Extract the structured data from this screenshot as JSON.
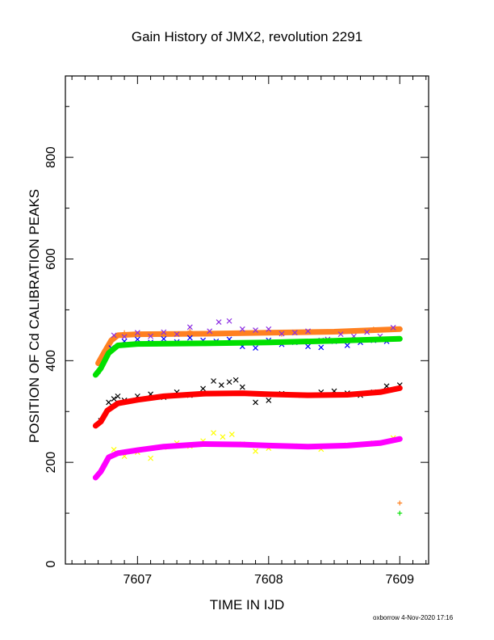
{
  "chart_data": {
    "type": "scatter",
    "title": "Gain History of JMX2, revolution 2291",
    "xlabel": "TIME IN IJD",
    "ylabel": "POSITION OF Cd CALIBRATION PEAKS",
    "xlim": [
      7606.45,
      7609.22
    ],
    "ylim": [
      0,
      960
    ],
    "xticks": [
      7607,
      7608,
      7609
    ],
    "yticks": [
      0,
      200,
      400,
      600,
      800
    ],
    "grid": false,
    "series": [
      {
        "color": "#ff8020",
        "marker": "+",
        "fit": [
          [
            7606.7,
            395
          ],
          [
            7606.75,
            418
          ],
          [
            7606.8,
            440
          ],
          [
            7606.85,
            450
          ],
          [
            7607.0,
            452
          ],
          [
            7607.5,
            453
          ],
          [
            7608.0,
            455
          ],
          [
            7608.5,
            457
          ],
          [
            7609.0,
            462
          ]
        ],
        "points": [
          [
            7606.72,
            400
          ],
          [
            7606.9,
            455
          ],
          [
            7607.4,
            458
          ],
          [
            7608.1,
            452
          ],
          [
            7608.8,
            462
          ],
          [
            7609.0,
            120
          ]
        ]
      },
      {
        "color": "#8a2be2",
        "marker": "x",
        "points": [
          [
            7606.82,
            450
          ],
          [
            7606.9,
            447
          ],
          [
            7607.0,
            455
          ],
          [
            7607.1,
            448
          ],
          [
            7607.2,
            456
          ],
          [
            7607.3,
            452
          ],
          [
            7607.4,
            466
          ],
          [
            7607.55,
            458
          ],
          [
            7607.62,
            476
          ],
          [
            7607.7,
            478
          ],
          [
            7607.8,
            462
          ],
          [
            7607.9,
            460
          ],
          [
            7608.0,
            462
          ],
          [
            7608.1,
            453
          ],
          [
            7608.2,
            455
          ],
          [
            7608.3,
            458
          ],
          [
            7608.4,
            440
          ],
          [
            7608.45,
            442
          ],
          [
            7608.55,
            452
          ],
          [
            7608.65,
            448
          ],
          [
            7608.75,
            456
          ],
          [
            7608.85,
            448
          ],
          [
            7608.95,
            465
          ]
        ]
      },
      {
        "color": "#0000ff",
        "marker": "x",
        "points": [
          [
            7606.8,
            425
          ],
          [
            7606.9,
            438
          ],
          [
            7607.0,
            442
          ],
          [
            7607.1,
            436
          ],
          [
            7607.2,
            443
          ],
          [
            7607.3,
            437
          ],
          [
            7607.4,
            445
          ],
          [
            7607.5,
            440
          ],
          [
            7607.6,
            438
          ],
          [
            7607.7,
            442
          ],
          [
            7607.8,
            428
          ],
          [
            7607.9,
            425
          ],
          [
            7608.0,
            440
          ],
          [
            7608.1,
            432
          ],
          [
            7608.2,
            436
          ],
          [
            7608.3,
            428
          ],
          [
            7608.4,
            426
          ],
          [
            7608.5,
            438
          ],
          [
            7608.6,
            430
          ],
          [
            7608.7,
            436
          ],
          [
            7608.8,
            440
          ],
          [
            7608.9,
            438
          ]
        ]
      },
      {
        "color": "#00e000",
        "marker": "+",
        "fit": [
          [
            7606.68,
            372
          ],
          [
            7606.72,
            385
          ],
          [
            7606.78,
            415
          ],
          [
            7606.85,
            430
          ],
          [
            7607.0,
            433
          ],
          [
            7607.5,
            434
          ],
          [
            7608.0,
            436
          ],
          [
            7608.5,
            439
          ],
          [
            7609.0,
            443
          ]
        ],
        "points": [
          [
            7606.7,
            375
          ],
          [
            7606.9,
            432
          ],
          [
            7607.6,
            436
          ],
          [
            7608.4,
            438
          ],
          [
            7609.0,
            100
          ]
        ]
      },
      {
        "color": "#000000",
        "marker": "x",
        "points": [
          [
            7606.72,
            282
          ],
          [
            7606.78,
            318
          ],
          [
            7606.82,
            325
          ],
          [
            7606.85,
            330
          ],
          [
            7606.9,
            322
          ],
          [
            7607.0,
            330
          ],
          [
            7607.1,
            334
          ],
          [
            7607.2,
            328
          ],
          [
            7607.3,
            338
          ],
          [
            7607.4,
            332
          ],
          [
            7607.5,
            345
          ],
          [
            7607.58,
            360
          ],
          [
            7607.64,
            352
          ],
          [
            7607.7,
            358
          ],
          [
            7607.75,
            362
          ],
          [
            7607.8,
            348
          ],
          [
            7607.9,
            318
          ],
          [
            7608.0,
            322
          ],
          [
            7608.1,
            335
          ],
          [
            7608.25,
            332
          ],
          [
            7608.4,
            338
          ],
          [
            7608.5,
            340
          ],
          [
            7608.6,
            336
          ],
          [
            7608.7,
            332
          ],
          [
            7608.8,
            338
          ],
          [
            7608.9,
            350
          ],
          [
            7609.0,
            352
          ]
        ]
      },
      {
        "color": "#ff0000",
        "marker": "+",
        "fit": [
          [
            7606.68,
            272
          ],
          [
            7606.72,
            280
          ],
          [
            7606.77,
            302
          ],
          [
            7606.85,
            316
          ],
          [
            7607.0,
            323
          ],
          [
            7607.2,
            330
          ],
          [
            7607.5,
            335
          ],
          [
            7607.8,
            336
          ],
          [
            7608.0,
            334
          ],
          [
            7608.3,
            332
          ],
          [
            7608.6,
            333
          ],
          [
            7608.85,
            338
          ],
          [
            7609.0,
            346
          ]
        ],
        "points": []
      },
      {
        "color": "#ffff00",
        "marker": "x",
        "points": [
          [
            7606.82,
            225
          ],
          [
            7606.9,
            212
          ],
          [
            7607.0,
            220
          ],
          [
            7607.1,
            208
          ],
          [
            7607.2,
            230
          ],
          [
            7607.3,
            238
          ],
          [
            7607.4,
            232
          ],
          [
            7607.5,
            242
          ],
          [
            7607.58,
            258
          ],
          [
            7607.65,
            250
          ],
          [
            7607.72,
            255
          ],
          [
            7607.8,
            236
          ],
          [
            7607.9,
            222
          ],
          [
            7608.0,
            228
          ],
          [
            7608.2,
            232
          ],
          [
            7608.4,
            226
          ],
          [
            7608.6,
            234
          ],
          [
            7608.8,
            238
          ],
          [
            7608.95,
            248
          ]
        ]
      },
      {
        "color": "#ff00ff",
        "marker": "+",
        "fit": [
          [
            7606.68,
            170
          ],
          [
            7606.72,
            182
          ],
          [
            7606.78,
            210
          ],
          [
            7606.85,
            218
          ],
          [
            7607.0,
            224
          ],
          [
            7607.2,
            231
          ],
          [
            7607.5,
            236
          ],
          [
            7607.8,
            235
          ],
          [
            7608.0,
            233
          ],
          [
            7608.3,
            231
          ],
          [
            7608.6,
            233
          ],
          [
            7608.85,
            238
          ],
          [
            7609.0,
            246
          ]
        ],
        "points": []
      }
    ]
  },
  "footer": "oxborrow  4-Nov-2020 17:16"
}
